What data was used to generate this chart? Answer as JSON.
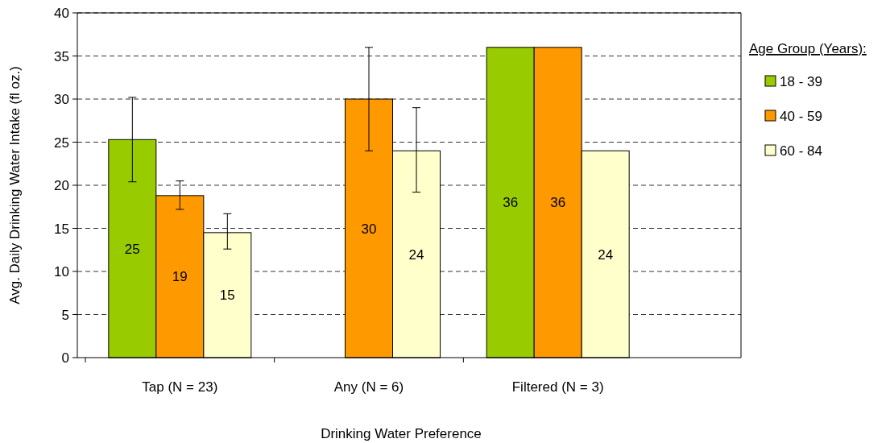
{
  "chart_data": {
    "type": "bar",
    "xlabel": "Drinking Water Preference",
    "ylabel": "Avg. Daily Drinking Water Intake (fl oz.)",
    "legend_title": "Age Group (Years):",
    "categories": [
      "Tap (N = 23)",
      "Any (N = 6)",
      "Filtered (N = 3)"
    ],
    "series": [
      {
        "name": "18 - 39",
        "color": "#99cc00",
        "values": [
          25.3,
          null,
          36
        ],
        "value_labels": [
          "25",
          null,
          "36"
        ],
        "errors": [
          [
            20.4,
            30.2
          ],
          null,
          null
        ]
      },
      {
        "name": "40 - 59",
        "color": "#ff9900",
        "values": [
          18.8,
          30,
          36
        ],
        "value_labels": [
          "19",
          "30",
          "36"
        ],
        "errors": [
          [
            17.2,
            20.5
          ],
          [
            24,
            36
          ],
          null
        ]
      },
      {
        "name": "60 - 84",
        "color": "#ffffcc",
        "values": [
          14.5,
          24,
          24
        ],
        "value_labels": [
          "15",
          "24",
          "24"
        ],
        "errors": [
          [
            12.6,
            16.7
          ],
          [
            19.2,
            29
          ],
          null
        ]
      }
    ],
    "ylim": [
      0,
      40
    ],
    "yticks": [
      0,
      5,
      10,
      15,
      20,
      25,
      30,
      35,
      40
    ],
    "grid": "y",
    "legend": "right"
  }
}
